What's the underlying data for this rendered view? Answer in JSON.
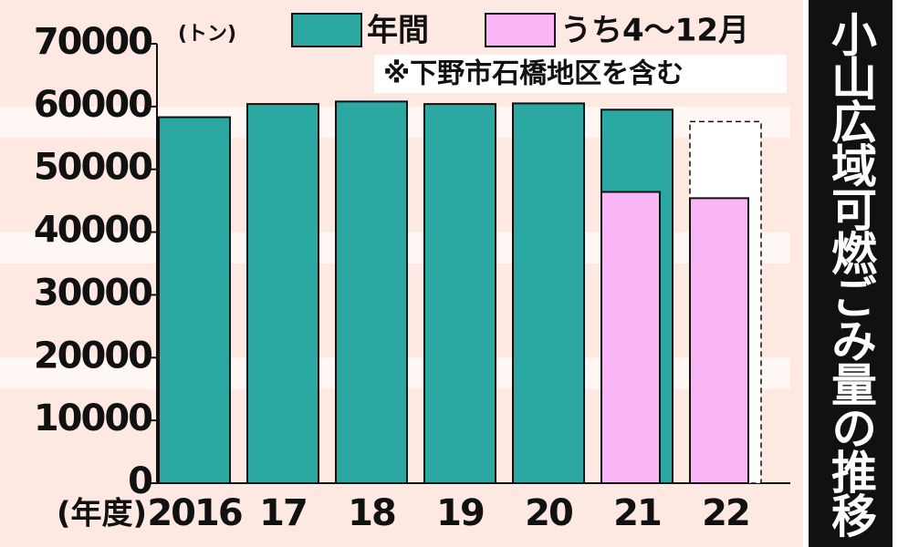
{
  "chart_data": {
    "type": "bar",
    "title": "小山広域可燃ごみ量の推移",
    "unit": "(トン)",
    "note": "※下野市石橋地区を含む",
    "x_label": "(年度)",
    "categories": [
      "2016",
      "17",
      "18",
      "19",
      "20",
      "21",
      "22"
    ],
    "series": [
      {
        "name": "年間",
        "color": "#2ba8a2",
        "values": [
          58300,
          60400,
          60800,
          60400,
          60500,
          59500,
          57600
        ],
        "dashed": [
          false,
          false,
          false,
          false,
          false,
          false,
          true
        ]
      },
      {
        "name": "うち4～12月",
        "color": "#f9b5f6",
        "values": [
          null,
          null,
          null,
          null,
          null,
          46400,
          45400
        ]
      }
    ],
    "ylim": [
      0,
      70000
    ],
    "yticks": [
      0,
      10000,
      20000,
      30000,
      40000,
      50000,
      60000,
      70000
    ],
    "grid": true
  }
}
